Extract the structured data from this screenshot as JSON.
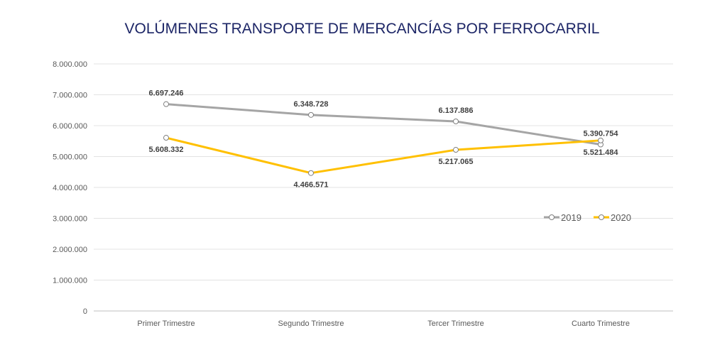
{
  "chart_data": {
    "type": "line",
    "title": "VOLÚMENES TRANSPORTE DE MERCANCÍAS POR FERROCARRIL",
    "xlabel": "",
    "ylabel": "",
    "categories": [
      "Primer Trimestre",
      "Segundo Trimestre",
      "Tercer Trimestre",
      "Cuarto Trimestre"
    ],
    "ylim": [
      0,
      8000000
    ],
    "yticks": [
      0,
      1000000,
      2000000,
      3000000,
      4000000,
      5000000,
      6000000,
      7000000,
      8000000
    ],
    "ytick_labels": [
      "0",
      "1.000.000",
      "2.000.000",
      "3.000.000",
      "4.000.000",
      "5.000.000",
      "6.000.000",
      "7.000.000",
      "8.000.000"
    ],
    "grid": true,
    "legend_placement": "right",
    "series": [
      {
        "name": "2019",
        "color": "#a5a5a5",
        "values": [
          6697246,
          6348728,
          6137886,
          5390754
        ],
        "labels": [
          "6.697.246",
          "6.348.728",
          "6.137.886",
          "5.390.754"
        ]
      },
      {
        "name": "2020",
        "color": "#ffc000",
        "values": [
          5608332,
          4466571,
          5217065,
          5521484
        ],
        "labels": [
          "5.608.332",
          "4.466.571",
          "5.217.065",
          "5.521.484"
        ]
      }
    ]
  }
}
